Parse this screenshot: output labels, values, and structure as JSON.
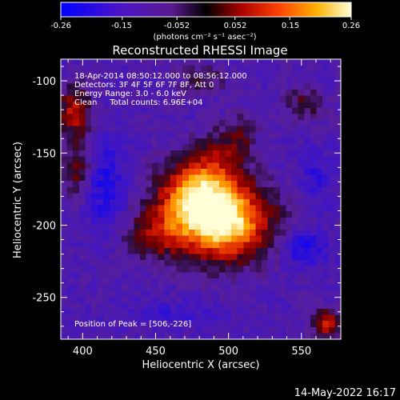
{
  "colorbar": {
    "ticks": [
      "-0.26",
      "-0.15",
      "-0.052",
      "0.052",
      "0.15",
      "0.26"
    ],
    "units": "(photons cm⁻² s⁻¹ asec⁻²)",
    "range": [
      -0.26,
      0.26
    ]
  },
  "chart_data": {
    "type": "heatmap",
    "title": "Reconstructed RHESSI Image",
    "xlabel": "Heliocentric X (arcsec)",
    "ylabel": "Heliocentric Y (arcsec)",
    "xlim": [
      385,
      577
    ],
    "ylim": [
      -279,
      -85
    ],
    "xticks": [
      "400",
      "450",
      "500",
      "550"
    ],
    "yticks": [
      "-100",
      "-150",
      "-200",
      "-250"
    ],
    "xtick_values": [
      400,
      450,
      500,
      550
    ],
    "ytick_values": [
      -100,
      -150,
      -200,
      -250
    ],
    "annotations": [
      "18-Apr-2014 08:50:12.000 to 08:56:12.000",
      "Detectors: 3F 4F 5F 6F 7F 8F, Att 0",
      "Energy Range: 3.0 - 6.0 keV",
      "Clean     Total counts: 6.96E+04"
    ],
    "peak_label": "Position of Peak = [506,-226]",
    "peak": [
      506,
      -226
    ]
  },
  "footer": {
    "timestamp": "14-May-2022 16:17"
  },
  "colors": {
    "background": "#000000",
    "axes": "#ffffff"
  }
}
